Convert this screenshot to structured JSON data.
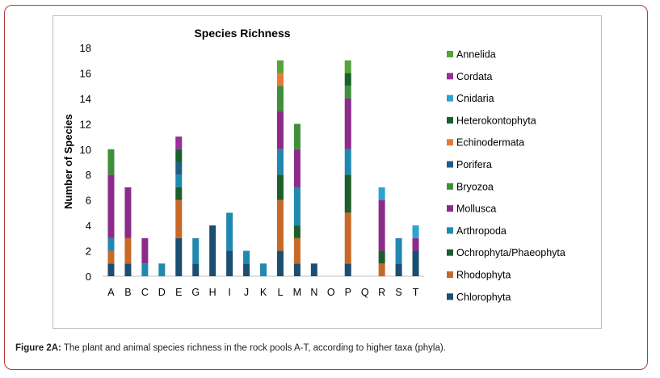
{
  "caption": {
    "label": "Figure 2A:",
    "text": " The plant and animal species richness in the rock pools A-T, according to higher taxa (phyla)."
  },
  "chart_data": {
    "type": "bar",
    "stacked": true,
    "title": "Species Richness",
    "xlabel": "",
    "ylabel": "Number of Species",
    "ylim": [
      0,
      18
    ],
    "yticks": [
      0,
      2,
      4,
      6,
      8,
      10,
      12,
      14,
      16,
      18
    ],
    "grid": false,
    "legend_position": "right",
    "categories": [
      "A",
      "B",
      "C",
      "D",
      "E",
      "G",
      "H",
      "I",
      "J",
      "K",
      "L",
      "M",
      "N",
      "O",
      "P",
      "Q",
      "R",
      "S",
      "T"
    ],
    "series": [
      {
        "name": "Chlorophyta",
        "color": "#1b4f72",
        "values": [
          1,
          1,
          0,
          0,
          3,
          1,
          4,
          2,
          1,
          0,
          2,
          1,
          1,
          0,
          1,
          0,
          0,
          1,
          2
        ]
      },
      {
        "name": "Rhodophyta",
        "color": "#c8692a",
        "values": [
          1,
          2,
          0,
          0,
          3,
          0,
          0,
          0,
          0,
          0,
          4,
          2,
          0,
          0,
          4,
          0,
          1,
          0,
          0
        ]
      },
      {
        "name": "Ochrophyta/Phaeophyta",
        "color": "#1e5e2a",
        "values": [
          0,
          0,
          0,
          0,
          1,
          0,
          0,
          0,
          0,
          0,
          2,
          1,
          0,
          0,
          3,
          0,
          1,
          0,
          0
        ]
      },
      {
        "name": "Arthropoda",
        "color": "#2188b0",
        "values": [
          1,
          0,
          1,
          1,
          1,
          2,
          0,
          3,
          1,
          1,
          2,
          3,
          0,
          0,
          2,
          0,
          0,
          2,
          0
        ]
      },
      {
        "name": "Mollusca",
        "color": "#8b2c8b",
        "values": [
          5,
          4,
          2,
          0,
          0,
          0,
          0,
          0,
          0,
          0,
          3,
          3,
          0,
          0,
          4,
          0,
          4,
          0,
          1
        ]
      },
      {
        "name": "Bryozoa",
        "color": "#3f8f3a",
        "values": [
          2,
          0,
          0,
          0,
          0,
          0,
          0,
          0,
          0,
          0,
          2,
          2,
          0,
          0,
          1,
          0,
          0,
          0,
          0
        ]
      },
      {
        "name": "Porifera",
        "color": "#1f5f84",
        "values": [
          0,
          0,
          0,
          0,
          1,
          0,
          0,
          0,
          0,
          0,
          0,
          0,
          0,
          0,
          0,
          0,
          0,
          0,
          0
        ]
      },
      {
        "name": "Echinodermata",
        "color": "#e87a36",
        "values": [
          0,
          0,
          0,
          0,
          0,
          0,
          0,
          0,
          0,
          0,
          1,
          0,
          0,
          0,
          0,
          0,
          0,
          0,
          0
        ]
      },
      {
        "name": "Heterokontophyta",
        "color": "#17612a",
        "values": [
          0,
          0,
          0,
          0,
          1,
          0,
          0,
          0,
          0,
          0,
          0,
          0,
          0,
          0,
          1,
          0,
          0,
          0,
          0
        ]
      },
      {
        "name": "Cnidaria",
        "color": "#2aa3d4",
        "values": [
          0,
          0,
          0,
          0,
          0,
          0,
          0,
          0,
          0,
          0,
          0,
          0,
          0,
          0,
          0,
          0,
          1,
          0,
          1
        ]
      },
      {
        "name": "Cordata",
        "color": "#9a2e9a",
        "values": [
          0,
          0,
          0,
          0,
          1,
          0,
          0,
          0,
          0,
          0,
          0,
          0,
          0,
          0,
          0,
          0,
          0,
          0,
          0
        ]
      },
      {
        "name": "Annelida",
        "color": "#55a33a",
        "values": [
          0,
          0,
          0,
          0,
          0,
          0,
          0,
          0,
          0,
          0,
          1,
          0,
          0,
          0,
          1,
          0,
          0,
          0,
          0
        ]
      }
    ],
    "legend_order": [
      "Annelida",
      "Cordata",
      "Cnidaria",
      "Heterokontophyta",
      "Echinodermata",
      "Porifera",
      "Bryozoa",
      "Mollusca",
      "Arthropoda",
      "Ochrophyta/Phaeophyta",
      "Rhodophyta",
      "Chlorophyta"
    ]
  }
}
